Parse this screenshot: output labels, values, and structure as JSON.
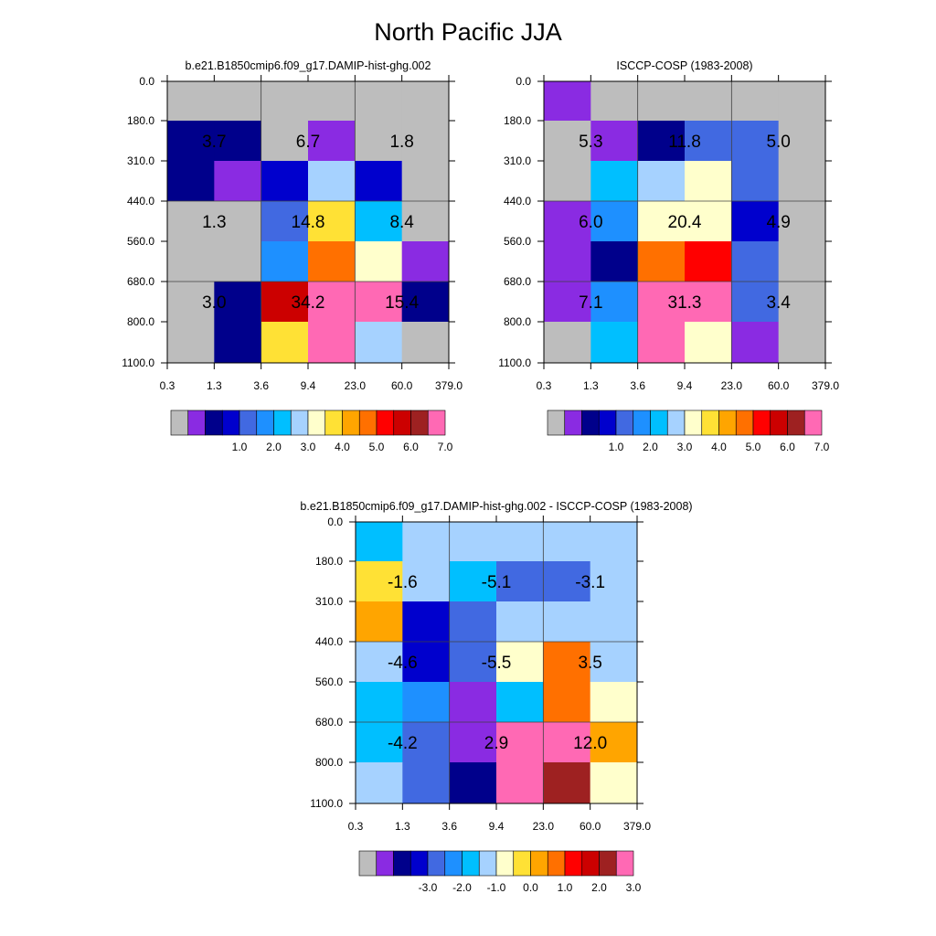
{
  "title": "North Pacific JJA",
  "palette": [
    "#bdbdbd",
    "#8a2be2",
    "#00008b",
    "#0000cd",
    "#4169e1",
    "#1e90ff",
    "#00bfff",
    "#a6d2ff",
    "#ffffcc",
    "#ffe135",
    "#ffa500",
    "#ff7000",
    "#ff0000",
    "#cc0000",
    "#9e2121",
    "#ff69b4"
  ],
  "chart_data": [
    {
      "type": "heatmap",
      "title": "b.e21.B1850cmip6.f09_g17.DAMIP-hist-ghg.002",
      "x_ticks": [
        "0.3",
        "1.3",
        "3.6",
        "9.4",
        "23.0",
        "60.0",
        "379.0"
      ],
      "y_ticks": [
        "0.0",
        "180.0",
        "310.0",
        "440.0",
        "560.0",
        "680.0",
        "800.0",
        "1100.0"
      ],
      "cells": [
        [
          0,
          0,
          0,
          0,
          0,
          0
        ],
        [
          2,
          2,
          0,
          1,
          0,
          0
        ],
        [
          2,
          1,
          3,
          7,
          3,
          0
        ],
        [
          0,
          0,
          4,
          9,
          6,
          0
        ],
        [
          0,
          0,
          5,
          11,
          8,
          1
        ],
        [
          0,
          2,
          13,
          15,
          15,
          2
        ],
        [
          0,
          2,
          9,
          15,
          7,
          0
        ]
      ],
      "block_labels": [
        [
          "3.7",
          "6.7",
          "1.8"
        ],
        [
          "1.3",
          "14.8",
          "8.4"
        ],
        [
          "3.0",
          "34.2",
          "15.4"
        ]
      ],
      "colorbar_labels": [
        "1.0",
        "2.0",
        "3.0",
        "4.0",
        "5.0",
        "6.0",
        "7.0"
      ]
    },
    {
      "type": "heatmap",
      "title": "ISCCP-COSP (1983-2008)",
      "x_ticks": [
        "0.3",
        "1.3",
        "3.6",
        "9.4",
        "23.0",
        "60.0",
        "379.0"
      ],
      "y_ticks": [
        "0.0",
        "180.0",
        "310.0",
        "440.0",
        "560.0",
        "680.0",
        "800.0",
        "1100.0"
      ],
      "cells": [
        [
          1,
          0,
          0,
          0,
          0,
          0
        ],
        [
          0,
          1,
          2,
          4,
          4,
          0
        ],
        [
          0,
          6,
          7,
          8,
          4,
          0
        ],
        [
          1,
          5,
          8,
          8,
          3,
          0
        ],
        [
          1,
          2,
          11,
          12,
          4,
          0
        ],
        [
          1,
          5,
          15,
          15,
          4,
          0
        ],
        [
          0,
          6,
          15,
          8,
          1,
          0
        ]
      ],
      "block_labels": [
        [
          "5.3",
          "11.8",
          "5.0"
        ],
        [
          "6.0",
          "20.4",
          "4.9"
        ],
        [
          "7.1",
          "31.3",
          "3.4"
        ]
      ],
      "colorbar_labels": [
        "1.0",
        "2.0",
        "3.0",
        "4.0",
        "5.0",
        "6.0",
        "7.0"
      ]
    },
    {
      "type": "heatmap",
      "title": "b.e21.B1850cmip6.f09_g17.DAMIP-hist-ghg.002 - ISCCP-COSP (1983-2008)",
      "x_ticks": [
        "0.3",
        "1.3",
        "3.6",
        "9.4",
        "23.0",
        "60.0",
        "379.0"
      ],
      "y_ticks": [
        "0.0",
        "180.0",
        "310.0",
        "440.0",
        "560.0",
        "680.0",
        "800.0",
        "1100.0"
      ],
      "cells": [
        [
          6,
          7,
          7,
          7,
          7,
          7
        ],
        [
          9,
          7,
          6,
          4,
          4,
          7
        ],
        [
          10,
          3,
          4,
          7,
          7,
          7
        ],
        [
          7,
          3,
          4,
          8,
          11,
          7
        ],
        [
          6,
          5,
          1,
          6,
          11,
          8
        ],
        [
          6,
          4,
          1,
          15,
          15,
          10
        ],
        [
          7,
          4,
          2,
          15,
          14,
          8
        ]
      ],
      "block_labels": [
        [
          "-1.6",
          "-5.1",
          "-3.1"
        ],
        [
          "-4.6",
          "-5.5",
          "3.5"
        ],
        [
          "-4.2",
          "2.9",
          "12.0"
        ]
      ],
      "colorbar_labels": [
        "-3.0",
        "-2.0",
        "-1.0",
        "0.0",
        "1.0",
        "2.0",
        "3.0"
      ]
    }
  ]
}
